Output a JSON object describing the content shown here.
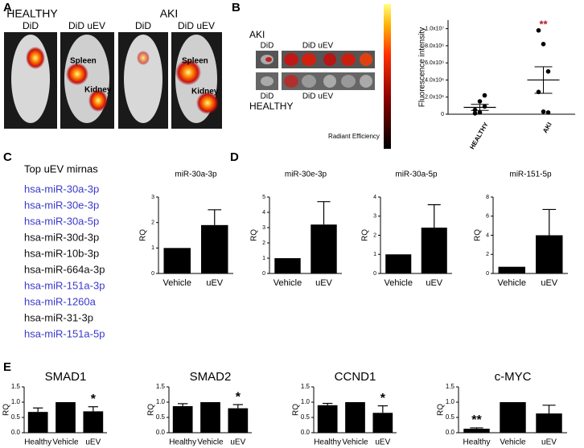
{
  "figure": {
    "panel_labels": [
      "A",
      "B",
      "C",
      "D",
      "E"
    ],
    "panel_a": {
      "groups": [
        "HEALTHY",
        "AKI"
      ],
      "image_labels": [
        "DiD",
        "DiD uEV",
        "DiD",
        "DiD uEV"
      ],
      "organ_labels": [
        "Spleen",
        "Kidney",
        "Spleen",
        "Kidney"
      ]
    },
    "panel_b": {
      "row_labels": [
        "AKI",
        "HEALTHY"
      ],
      "image_labels": [
        "DiD",
        "DiD uEV",
        "DiD",
        "DiD uEV"
      ],
      "colorbar_label": "Radiant Efficiency"
    },
    "panel_c": {
      "title": "Top uEV mirnas",
      "items": [
        {
          "text": "hsa-miR-30a-3p",
          "color": "#3a3acc"
        },
        {
          "text": "hsa-miR-30e-3p",
          "color": "#3a3acc"
        },
        {
          "text": "hsa-miR-30a-5p",
          "color": "#3a3acc"
        },
        {
          "text": "hsa-miR-30d-3p",
          "color": "#111111"
        },
        {
          "text": "hsa-miR-10b-3p",
          "color": "#111111"
        },
        {
          "text": "hsa-miR-664a-3p",
          "color": "#111111"
        },
        {
          "text": "hsa-miR-151a-3p",
          "color": "#3a3acc"
        },
        {
          "text": "hsa-miR-1260a",
          "color": "#3a3acc"
        },
        {
          "text": "hsa-miR-31-3p",
          "color": "#111111"
        },
        {
          "text": "hsa-miR-151a-5p",
          "color": "#3a3acc"
        }
      ]
    }
  },
  "chart_data": [
    {
      "type": "dot",
      "ylabel": "Fluorescence intensity",
      "categories": [
        "HEALTHY",
        "AKI"
      ],
      "points": [
        [
          500000,
          1500000,
          2200000,
          100000,
          200000,
          900000
        ],
        [
          9800000,
          8200000,
          5000000,
          2600000,
          300000,
          200000
        ]
      ],
      "means": [
        800000,
        4000000
      ],
      "errors": [
        350000,
        1550000
      ],
      "color": "#000000",
      "ylim": [
        0,
        11000000
      ],
      "yticks": [
        0,
        {
          "value": 2000000,
          "label": "2.0x10⁶"
        },
        {
          "value": 4000000,
          "label": "4.0x10⁶"
        },
        {
          "value": 6000000,
          "label": "6.0x10⁶"
        },
        {
          "value": 8000000,
          "label": "8.0x10⁶"
        },
        {
          "value": 10000000,
          "label": "1.0x10⁷"
        }
      ],
      "annotations": [
        {
          "category": "AKI",
          "text": "**",
          "color": "#b01c2e"
        }
      ]
    },
    {
      "type": "bar",
      "title": "miR-30a-3p",
      "ylabel": "RQ",
      "categories": [
        "Vehicle",
        "uEV"
      ],
      "values": [
        1,
        1.9
      ],
      "errors": [
        0,
        0.6
      ],
      "color": "#000000",
      "ylim": [
        0,
        3
      ],
      "yticks": [
        0,
        1,
        2,
        3
      ]
    },
    {
      "type": "bar",
      "title": "miR-30e-3p",
      "ylabel": "RQ",
      "categories": [
        "Vehicle",
        "uEV"
      ],
      "values": [
        1,
        3.2
      ],
      "errors": [
        0,
        1.5
      ],
      "color": "#000000",
      "ylim": [
        0,
        5
      ],
      "yticks": [
        0,
        1,
        2,
        3,
        4,
        5
      ]
    },
    {
      "type": "bar",
      "title": "miR-30a-5p",
      "ylabel": "RQ",
      "categories": [
        "Vehicle",
        "uEV"
      ],
      "values": [
        1,
        2.4
      ],
      "errors": [
        0,
        1.2
      ],
      "color": "#000000",
      "ylim": [
        0,
        4
      ],
      "yticks": [
        0,
        1,
        2,
        3,
        4
      ]
    },
    {
      "type": "bar",
      "title": "miR-151-5p",
      "ylabel": "RQ",
      "categories": [
        "Vehicle",
        "uEV"
      ],
      "values": [
        0.7,
        4.0
      ],
      "errors": [
        0,
        2.7
      ],
      "color": "#000000",
      "ylim": [
        0,
        8
      ],
      "yticks": [
        0,
        2,
        4,
        6,
        8
      ]
    },
    {
      "type": "bar",
      "title": "SMAD1",
      "ylabel": "RQ",
      "categories": [
        "Healthy",
        "Vehicle",
        "uEV"
      ],
      "values": [
        0.68,
        1,
        0.7
      ],
      "errors": [
        0.13,
        0,
        0.15
      ],
      "color": "#000000",
      "ylim": [
        0,
        1.5
      ],
      "yticks": [
        {
          "value": 0,
          "label": "0.0"
        },
        0.5,
        {
          "value": 1,
          "label": "1.0"
        },
        1.5
      ],
      "annotations": [
        {
          "category": "uEV",
          "text": "*",
          "color": "#000000"
        }
      ]
    },
    {
      "type": "bar",
      "title": "SMAD2",
      "ylabel": "RQ",
      "categories": [
        "Healthy",
        "Vehicle",
        "uEV"
      ],
      "values": [
        0.87,
        1,
        0.8
      ],
      "errors": [
        0.08,
        0,
        0.12
      ],
      "color": "#000000",
      "ylim": [
        0,
        1.5
      ],
      "yticks": [
        {
          "value": 0,
          "label": "0.0"
        },
        0.5,
        {
          "value": 1,
          "label": "1.0"
        },
        1.5
      ],
      "annotations": [
        {
          "category": "uEV",
          "text": "*",
          "color": "#000000"
        }
      ]
    },
    {
      "type": "bar",
      "title": "CCND1",
      "ylabel": "RQ",
      "categories": [
        "Healthy",
        "Vehicle",
        "uEV"
      ],
      "values": [
        0.9,
        1,
        0.65
      ],
      "errors": [
        0.06,
        0,
        0.23
      ],
      "color": "#000000",
      "ylim": [
        0,
        1.5
      ],
      "yticks": [
        {
          "value": 0,
          "label": "0.0"
        },
        0.5,
        {
          "value": 1,
          "label": "1.0"
        },
        1.5
      ],
      "annotations": [
        {
          "category": "uEV",
          "text": "*",
          "color": "#000000"
        }
      ]
    },
    {
      "type": "bar",
      "title": "c-MYC",
      "ylabel": "RQ",
      "categories": [
        "Healthy",
        "Vehicle",
        "uEV"
      ],
      "values": [
        0.13,
        1,
        0.63
      ],
      "errors": [
        0.03,
        0,
        0.27
      ],
      "color": "#000000",
      "ylim": [
        0,
        1.5
      ],
      "yticks": [
        {
          "value": 0,
          "label": "0.0"
        },
        0.5,
        {
          "value": 1,
          "label": "1.0"
        },
        1.5
      ],
      "annotations": [
        {
          "category": "Healthy",
          "text": "**",
          "color": "#000000"
        }
      ]
    }
  ]
}
